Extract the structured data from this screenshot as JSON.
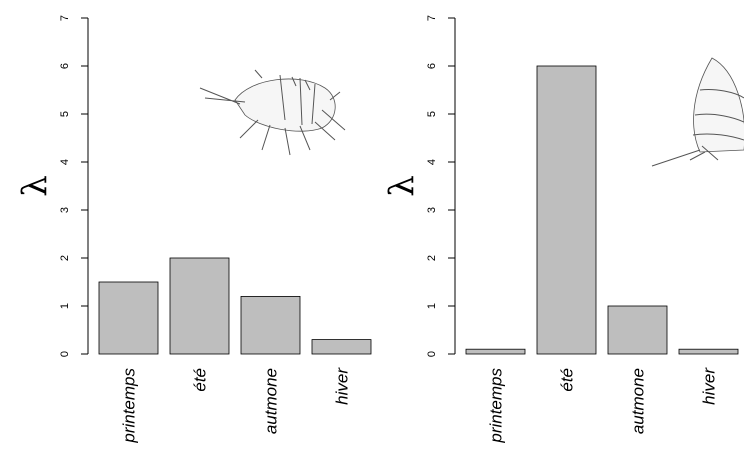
{
  "chart_data": [
    {
      "type": "bar",
      "ylabel": "λ",
      "categories": [
        "printemps",
        "été",
        "autmone",
        "hiver"
      ],
      "values": [
        1.5,
        2,
        1.2,
        0.3
      ],
      "color": "#bebebe",
      "ylim": [
        0,
        7
      ],
      "yticks": [
        0,
        1,
        2,
        3,
        4,
        5,
        6,
        7
      ]
    },
    {
      "type": "bar",
      "ylabel": "λ",
      "categories": [
        "printemps",
        "été",
        "autmone",
        "hiver"
      ],
      "values": [
        0.1,
        6,
        1,
        0.1
      ],
      "color": "#bebebe",
      "ylim": [
        0,
        7
      ],
      "yticks": [
        0,
        1,
        2,
        3,
        4,
        5,
        6,
        7
      ]
    }
  ]
}
